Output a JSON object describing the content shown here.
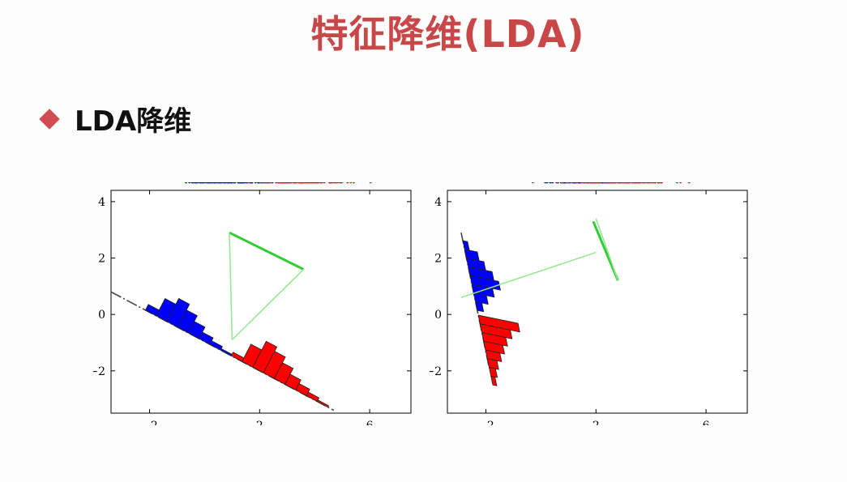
{
  "slide": {
    "title": "特征降维(LDA)",
    "bullet": "LDA降维"
  },
  "colors": {
    "title": "#c8484a",
    "bullet_marker": "#d24a52",
    "class1": "#0000ff",
    "class2": "#ff0000",
    "projection_line": "#90e890",
    "mean_link": "#33cc33"
  },
  "icons": {
    "bullet_marker": "diamond-icon"
  },
  "chart_data": [
    {
      "type": "scatter",
      "panel": "left",
      "title": "",
      "xlim": [
        -3.4,
        7.5
      ],
      "ylim": [
        -3.5,
        4.4
      ],
      "xticks": [
        "-2",
        "2",
        "6"
      ],
      "yticks": [
        "4",
        "2",
        "0",
        "-2"
      ],
      "series": [
        {
          "color": "#0000ff",
          "mean": [
            0.9,
            2.9
          ]
        },
        {
          "color": "#ff0000",
          "mean": [
            3.6,
            1.6
          ]
        }
      ],
      "projection_direction": "line from (-3.4, 0.8) to (4.7, -3.4)",
      "histograms_on_projection": true
    },
    {
      "type": "scatter",
      "panel": "right",
      "title": "",
      "xlim": [
        -3.4,
        7.5
      ],
      "ylim": [
        -3.5,
        4.4
      ],
      "xticks": [
        "-2",
        "2",
        "6"
      ],
      "yticks": [
        "4",
        "2",
        "0",
        "-2"
      ],
      "series": [
        {
          "color": "#0000ff",
          "mean": [
            1.9,
            3.3
          ]
        },
        {
          "color": "#ff0000",
          "mean": [
            2.8,
            1.2
          ]
        }
      ],
      "projection_direction": "near-vertical line from (-2.9, 2.9) to (-1.9, -1.8)",
      "histograms_on_projection": true
    }
  ]
}
